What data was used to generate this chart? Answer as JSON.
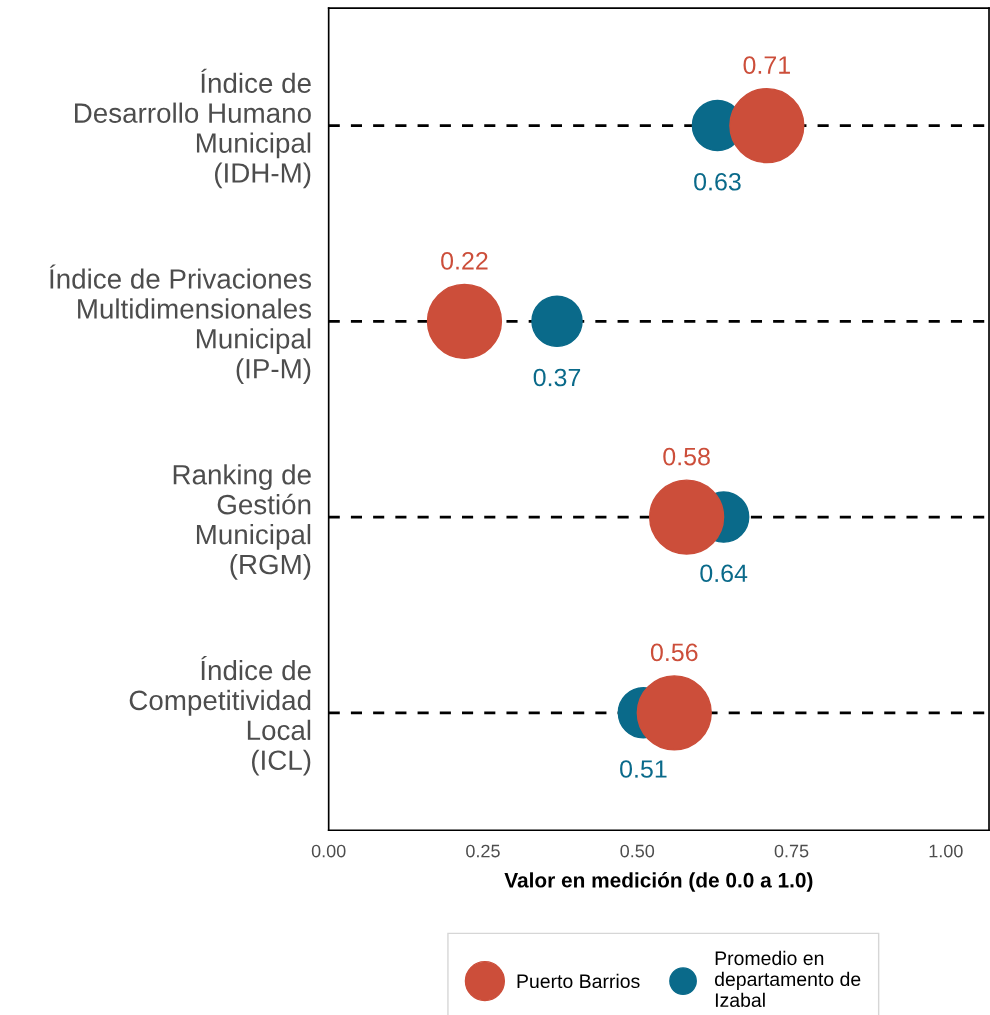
{
  "chart_data": {
    "type": "scatter",
    "orientation": "horizontal",
    "xlabel": "Valor en medición (de 0.0 a 1.0)",
    "categories": [
      "Índice de\nDesarrollo Humano\nMunicipal\n(IDH-M)",
      "Índice de Privaciones\nMultidimensionales\nMunicipal\n(IP-M)",
      "Ranking de\nGestión\nMunicipal\n(RGM)",
      "Índice de\nCompetitividad\nLocal\n(ICL)"
    ],
    "series": [
      {
        "name": "Puerto Barrios",
        "color": "#cc4e3a",
        "values": [
          0.71,
          0.22,
          0.58,
          0.56
        ]
      },
      {
        "name": "Promedio en\ndepartamento de\nIzabal",
        "color": "#0a6a8a",
        "values": [
          0.63,
          0.37,
          0.64,
          0.51
        ]
      }
    ],
    "xlim": [
      0,
      1.07
    ],
    "xticks": [
      {
        "value": 0,
        "label": "0.00"
      },
      {
        "value": 0.25,
        "label": "0.25"
      },
      {
        "value": 0.5,
        "label": "0.50"
      },
      {
        "value": 0.75,
        "label": "0.75"
      },
      {
        "value": 1,
        "label": "1.00"
      }
    ],
    "grid": "y",
    "line_style": "dashed",
    "marker": "circle",
    "data_labels": true,
    "legend": "bottom"
  }
}
